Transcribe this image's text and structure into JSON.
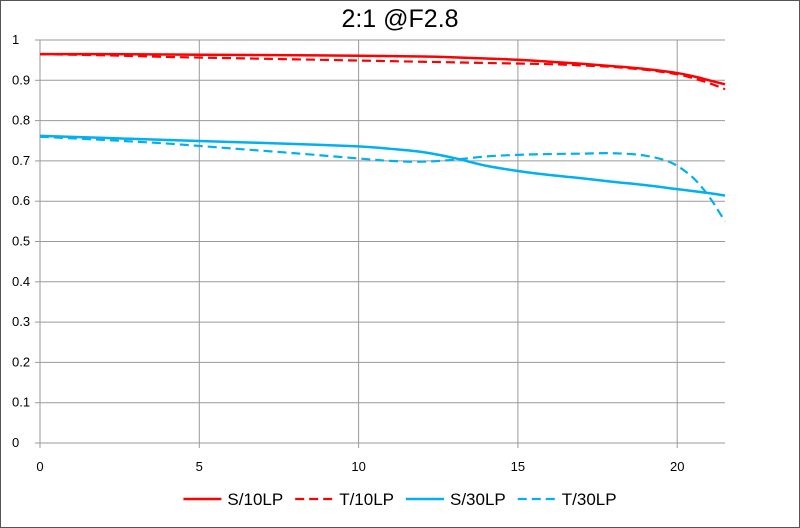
{
  "chart_data": {
    "type": "line",
    "title": "2:1  @F2.8",
    "xlabel": "",
    "ylabel": "",
    "xlim": [
      0,
      21.5
    ],
    "ylim": [
      0,
      1
    ],
    "x_ticks": [
      0,
      5,
      10,
      15,
      20
    ],
    "y_ticks": [
      0,
      0.1,
      0.2,
      0.3,
      0.4,
      0.5,
      0.6,
      0.7,
      0.8,
      0.9,
      1
    ],
    "x_tick_labels": [
      "0",
      "5",
      "10",
      "15",
      "20"
    ],
    "y_tick_labels": [
      "0",
      "0.1",
      "0.2",
      "0.3",
      "0.4",
      "0.5",
      "0.6",
      "0.7",
      "0.8",
      "0.9",
      "1"
    ],
    "grid": true,
    "legend_position": "bottom",
    "series": [
      {
        "name": "S/10LP",
        "color": "#ff0000",
        "dash": "solid",
        "x": [
          0,
          2,
          4,
          6,
          8,
          10,
          12,
          13,
          14,
          15,
          16,
          17,
          18,
          19,
          20,
          20.5,
          21,
          21.5
        ],
        "y": [
          0.965,
          0.965,
          0.964,
          0.963,
          0.962,
          0.961,
          0.959,
          0.957,
          0.954,
          0.951,
          0.946,
          0.941,
          0.935,
          0.928,
          0.918,
          0.91,
          0.9,
          0.89
        ]
      },
      {
        "name": "T/10LP",
        "color": "#ff0000",
        "dash": "dashed",
        "x": [
          0,
          2,
          4,
          6,
          8,
          10,
          12,
          14,
          16,
          17,
          18,
          19,
          20,
          20.5,
          21,
          21.5
        ],
        "y": [
          0.965,
          0.962,
          0.958,
          0.955,
          0.952,
          0.949,
          0.946,
          0.943,
          0.94,
          0.937,
          0.933,
          0.926,
          0.915,
          0.905,
          0.893,
          0.878
        ]
      },
      {
        "name": "S/30LP",
        "color": "#00b0f0",
        "dash": "solid",
        "x": [
          0,
          2,
          4,
          6,
          8,
          10,
          11,
          12,
          13,
          14,
          15,
          16,
          17,
          18,
          19,
          20,
          21,
          21.5
        ],
        "y": [
          0.762,
          0.757,
          0.752,
          0.747,
          0.742,
          0.736,
          0.73,
          0.722,
          0.707,
          0.688,
          0.675,
          0.665,
          0.657,
          0.648,
          0.64,
          0.63,
          0.62,
          0.614
        ]
      },
      {
        "name": "T/30LP",
        "color": "#00b0f0",
        "dash": "dashed",
        "x": [
          0,
          2,
          4,
          6,
          8,
          10,
          11,
          12,
          13,
          14,
          15,
          16,
          17,
          18,
          19,
          19.8,
          20.4,
          20.8,
          21.1,
          21.3,
          21.5
        ],
        "y": [
          0.76,
          0.752,
          0.743,
          0.731,
          0.719,
          0.706,
          0.7,
          0.698,
          0.703,
          0.711,
          0.715,
          0.717,
          0.718,
          0.719,
          0.713,
          0.696,
          0.665,
          0.632,
          0.6,
          0.575,
          0.55
        ]
      }
    ]
  }
}
